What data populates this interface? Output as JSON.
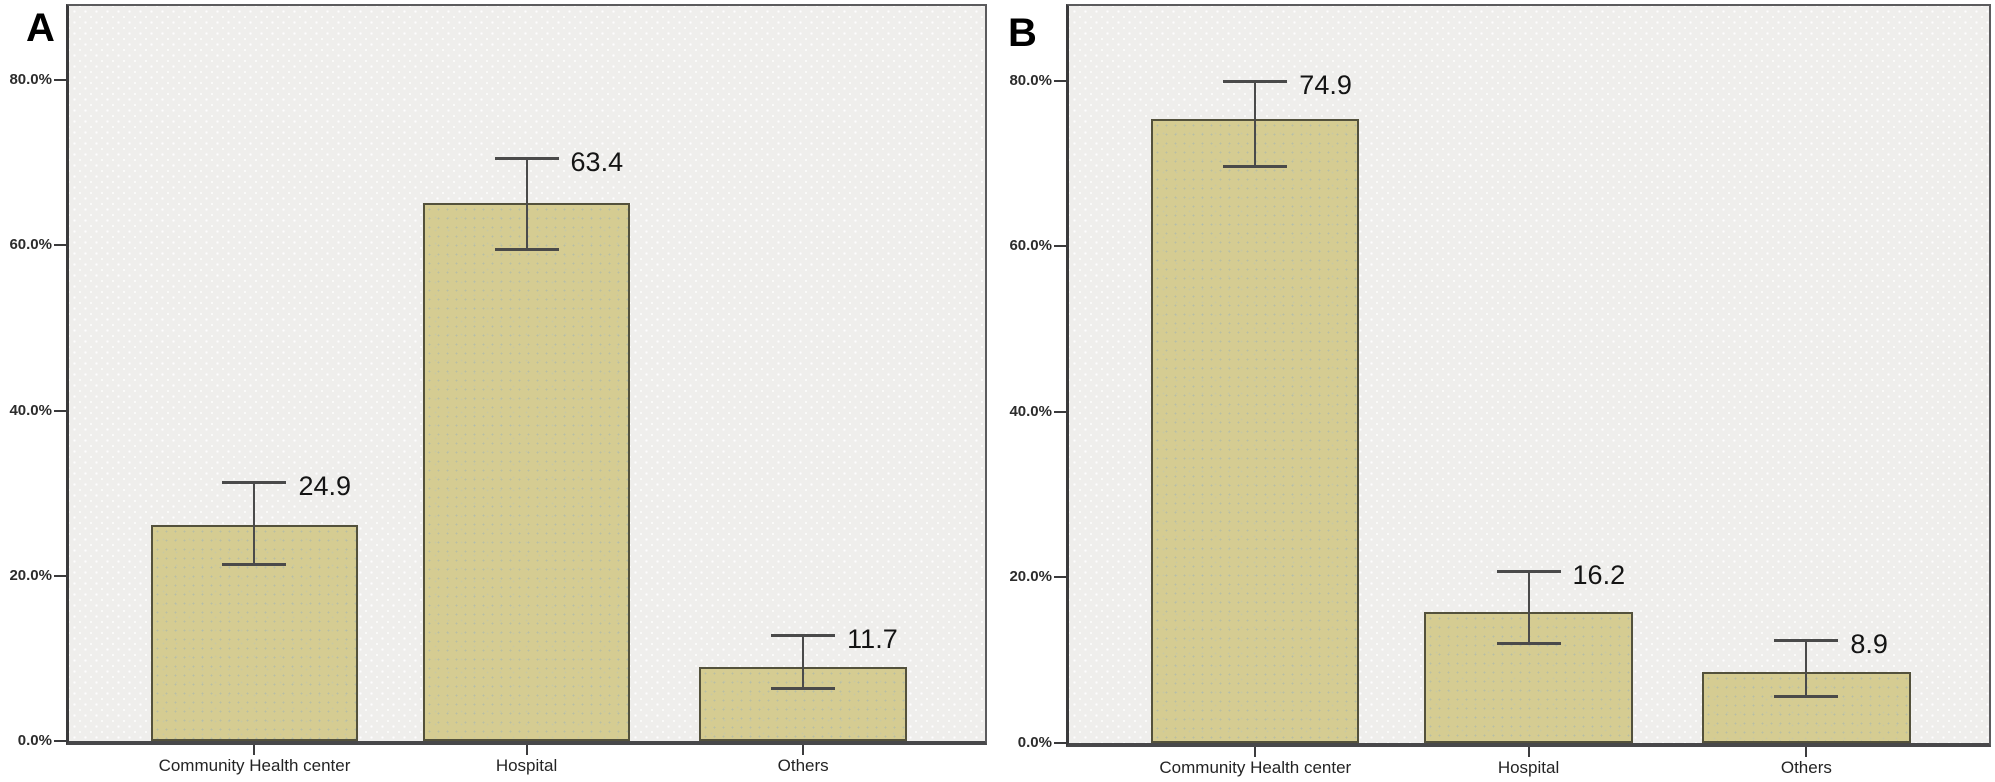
{
  "style": {
    "bar_fill": "#d5cc92",
    "bar_border": "#53513c",
    "plot_bg": "#efeeec",
    "frame": "#5b5b5d",
    "axis": "#3a3a3c",
    "baseline": "#48484a",
    "error_bar": "#4a4a4a"
  },
  "chart_data": [
    {
      "type": "bar",
      "panel_label": "A",
      "categories": [
        "Community Health center",
        "Hospital",
        "Others"
      ],
      "values": [
        24.9,
        63.4,
        11.7
      ],
      "value_labels": [
        "24.9",
        "63.4",
        "11.7"
      ],
      "bar_heights_pct": [
        26.1,
        65.2,
        9.0
      ],
      "error_low_pct": [
        21.3,
        59.5,
        6.3
      ],
      "error_high_pct": [
        31.4,
        70.6,
        12.8
      ],
      "ytick_values": [
        0,
        20,
        40,
        60,
        80
      ],
      "ytick_labels": [
        "0.0%",
        "20.0%",
        "40.0%",
        "60.0%",
        "80.0%"
      ],
      "ylim": [
        0,
        89
      ],
      "xlabel": "",
      "ylabel": "",
      "grid": false,
      "legend": null
    },
    {
      "type": "bar",
      "panel_label": "B",
      "categories": [
        "Community Health center",
        "Hospital",
        "Others"
      ],
      "values": [
        74.9,
        16.2,
        8.9
      ],
      "value_labels": [
        "74.9",
        "16.2",
        "8.9"
      ],
      "bar_heights_pct": [
        75.3,
        15.8,
        8.6
      ],
      "error_low_pct": [
        69.6,
        11.9,
        5.5
      ],
      "error_high_pct": [
        80.0,
        20.8,
        12.4
      ],
      "ytick_values": [
        0,
        20,
        40,
        60,
        80
      ],
      "ytick_labels": [
        "0.0%",
        "20.0%",
        "40.0%",
        "60.0%",
        "80.0%"
      ],
      "ylim": [
        0,
        89
      ],
      "xlabel": "",
      "ylabel": "",
      "grid": false,
      "legend": null
    }
  ]
}
